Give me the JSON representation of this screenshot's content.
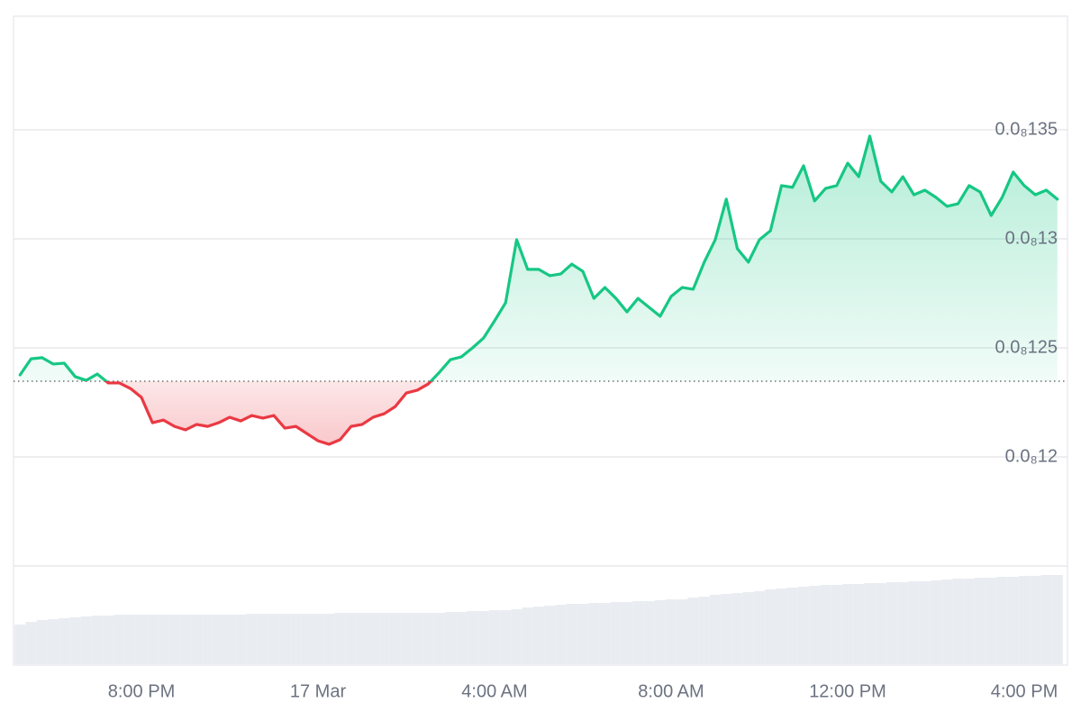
{
  "chart_data": {
    "type": "line",
    "categories": [
      null,
      null,
      null,
      null,
      null,
      null,
      null,
      null,
      null,
      null,
      null,
      "8:00 PM",
      null,
      null,
      null,
      null,
      null,
      null,
      null,
      null,
      null,
      null,
      null,
      null,
      null,
      null,
      null,
      "17 Mar",
      null,
      null,
      null,
      null,
      null,
      null,
      null,
      null,
      null,
      null,
      null,
      null,
      null,
      null,
      null,
      "4:00 AM",
      null,
      null,
      null,
      null,
      null,
      null,
      null,
      null,
      null,
      null,
      null,
      null,
      null,
      null,
      null,
      "8:00 AM",
      null,
      null,
      null,
      null,
      null,
      null,
      null,
      null,
      null,
      null,
      null,
      null,
      null,
      null,
      null,
      "12:00 PM",
      null,
      null,
      null,
      null,
      null,
      null,
      null,
      null,
      null,
      null,
      null,
      null,
      null,
      null,
      null,
      "4:00 PM",
      null,
      null,
      null
    ],
    "values": [
      1.2376e-09,
      1.245e-09,
      1.2455e-09,
      1.2426e-09,
      1.243e-09,
      1.2368e-09,
      1.2351e-09,
      1.238e-09,
      1.2339e-09,
      1.2339e-09,
      1.2314e-09,
      1.2273e-09,
      1.2157e-09,
      1.2169e-09,
      1.214e-09,
      1.2124e-09,
      1.2149e-09,
      1.214e-09,
      1.2157e-09,
      1.2182e-09,
      1.2165e-09,
      1.219e-09,
      1.2178e-09,
      1.219e-09,
      1.2132e-09,
      1.214e-09,
      1.2107e-09,
      1.2074e-09,
      1.2058e-09,
      1.2079e-09,
      1.214e-09,
      1.2149e-09,
      1.2182e-09,
      1.2198e-09,
      1.2231e-09,
      1.2293e-09,
      1.2306e-09,
      1.2335e-09,
      1.2388e-09,
      1.2446e-09,
      1.2459e-09,
      1.25e-09,
      1.2545e-09,
      1.2624e-09,
      1.2707e-09,
      1.2996e-09,
      1.286e-09,
      1.286e-09,
      1.2831e-09,
      1.2839e-09,
      1.2884e-09,
      1.2851e-09,
      1.2727e-09,
      1.2777e-09,
      1.2727e-09,
      1.2665e-09,
      1.2727e-09,
      1.2686e-09,
      1.2645e-09,
      1.2736e-09,
      1.2777e-09,
      1.2769e-09,
      1.2893e-09,
      1.2996e-09,
      1.3182e-09,
      1.2955e-09,
      1.2893e-09,
      1.2996e-09,
      1.3037e-09,
      1.3244e-09,
      1.3236e-09,
      1.3335e-09,
      1.3174e-09,
      1.3231e-09,
      1.3244e-09,
      1.3347e-09,
      1.3285e-09,
      1.3471e-09,
      1.3264e-09,
      1.3215e-09,
      1.3285e-09,
      1.3202e-09,
      1.3223e-09,
      1.319e-09,
      1.3149e-09,
      1.3161e-09,
      1.3244e-09,
      1.3215e-09,
      1.3107e-09,
      1.319e-09,
      1.3306e-09,
      1.3244e-09,
      1.3202e-09,
      1.3223e-09,
      1.3182e-09
    ],
    "volume": [
      44,
      47,
      49,
      50,
      51,
      52,
      53,
      54,
      54,
      55,
      55,
      55,
      55,
      55,
      55,
      55,
      55,
      55,
      55,
      55,
      55,
      56,
      56,
      56,
      56,
      56,
      56,
      56,
      56,
      57,
      57,
      57,
      57,
      57,
      57,
      57,
      57,
      57,
      57,
      58,
      58,
      59,
      59,
      60,
      60,
      61,
      63,
      64,
      65,
      66,
      67,
      67,
      68,
      68,
      69,
      69,
      70,
      70,
      71,
      72,
      72,
      74,
      75,
      77,
      78,
      79,
      80,
      81,
      83,
      84,
      85,
      86,
      87,
      88,
      88,
      89,
      89,
      90,
      90,
      91,
      91,
      92,
      92,
      93,
      94,
      95,
      95,
      96,
      96,
      97,
      97,
      98,
      98,
      99,
      99
    ],
    "volume_lim": [
      0,
      109
    ],
    "baseline": 1.2347e-09,
    "up_color": "#16c784",
    "down_color": "#ea3943",
    "volume_color": "#e9edf1",
    "ylim": [
      1.15e-09,
      1.4e-09
    ],
    "yticks": [
      {
        "value": 1.35e-09,
        "label": "0.0₈135"
      },
      {
        "value": 1.3e-09,
        "label": "0.0₈13"
      },
      {
        "value": 1.25e-09,
        "label": "0.0₈125"
      },
      {
        "value": 1.2e-09,
        "label": "0.0₈12"
      }
    ],
    "grid": true
  }
}
